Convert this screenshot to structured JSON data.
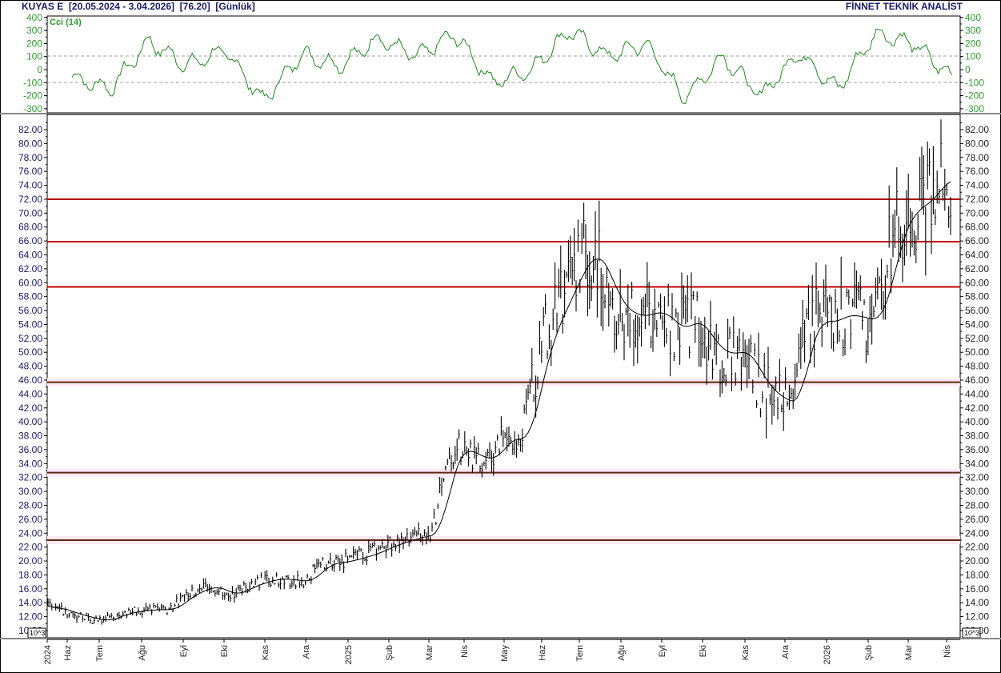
{
  "header": {
    "title": "KUYAS E  [20.05.2024 - 3.04.2026]  [76.20]  [Günlük]",
    "brand": "FİNNET TEKNİK ANALİST"
  },
  "cci_panel": {
    "legend": "Cci (14)",
    "ticks": [
      "400",
      "300",
      "200",
      "100",
      "0",
      "-100",
      "-200",
      "-300"
    ],
    "line_color": "#1e8a1e",
    "label_color": "#2e9e2e"
  },
  "price_panel": {
    "ticks": [
      "82.00",
      "80.00",
      "78.00",
      "76.00",
      "74.00",
      "72.00",
      "70.00",
      "68.00",
      "66.00",
      "64.00",
      "62.00",
      "60.00",
      "58.00",
      "56.00",
      "54.00",
      "52.00",
      "50.00",
      "48.00",
      "46.00",
      "44.00",
      "42.00",
      "40.00",
      "38.00",
      "36.00",
      "34.00",
      "32.00",
      "30.00",
      "28.00",
      "26.00",
      "24.00",
      "22.00",
      "20.00",
      "18.00",
      "16.00",
      "14.00",
      "12.00",
      "10.00"
    ],
    "exponent_badge": "10^3"
  },
  "x_axis": {
    "labels": [
      "2024",
      "Haz",
      "Tem",
      "Ağu",
      "Eyl",
      "Eki",
      "Kas",
      "Ara",
      "2025",
      "Şub",
      "Mar",
      "Nis",
      "May",
      "Haz",
      "Tem",
      "Ağu",
      "Eyl",
      "Eki",
      "Kas",
      "Ara",
      "2026",
      "Şub",
      "Mar",
      "Nis"
    ]
  },
  "chart_data": [
    {
      "type": "line",
      "title": "Cci (14)",
      "xlabel": "",
      "ylabel": "",
      "ylim": [
        -300,
        400
      ],
      "reference_lines": [
        100,
        -100
      ],
      "categories": [
        "2024-05",
        "2024-06",
        "2024-07",
        "2024-08",
        "2024-09",
        "2024-10",
        "2024-11",
        "2024-12",
        "2025-01",
        "2025-02",
        "2025-03",
        "2025-04",
        "2025-05",
        "2025-06",
        "2025-07",
        "2025-08",
        "2025-09",
        "2025-10",
        "2025-11",
        "2025-12",
        "2026-01",
        "2026-02",
        "2026-03",
        "2026-04"
      ],
      "series": [
        {
          "name": "Cci (14)",
          "values": [
            -60,
            -150,
            220,
            30,
            150,
            -240,
            120,
            30,
            240,
            100,
            270,
            -100,
            0,
            300,
            100,
            200,
            -220,
            100,
            -200,
            130,
            -150,
            280,
            200,
            -60
          ]
        }
      ],
      "grid": false
    },
    {
      "type": "ohlc",
      "title": "KUYAS E [20.05.2024 - 3.04.2026] [76.20] [Günlük]",
      "xlabel": "",
      "ylabel": "",
      "ylim": [
        10,
        84
      ],
      "last_value": 76.2,
      "categories": [
        "2024-05",
        "2024-06",
        "2024-07",
        "2024-08",
        "2024-09",
        "2024-10",
        "2024-11",
        "2024-12",
        "2025-01",
        "2025-02",
        "2025-03",
        "2025-04",
        "2025-05",
        "2025-06",
        "2025-07",
        "2025-08",
        "2025-09",
        "2025-10",
        "2025-11",
        "2025-12",
        "2026-01",
        "2026-02",
        "2026-03",
        "2026-04"
      ],
      "series": [
        {
          "name": "Close (approx.)",
          "values": [
            13.5,
            12.3,
            11.2,
            13.0,
            15.5,
            15.5,
            17.0,
            18.0,
            20.0,
            22.5,
            24.0,
            36.0,
            38.0,
            55.0,
            66.0,
            57.0,
            56.0,
            52.0,
            47.0,
            42.0,
            55.0,
            55.0,
            72.0,
            76.2
          ]
        },
        {
          "name": "Moving Average",
          "values": [
            13.0,
            12.5,
            11.5,
            12.5,
            14.5,
            15.0,
            16.5,
            17.5,
            19.5,
            22.0,
            23.5,
            35.0,
            36.0,
            48.0,
            63.0,
            58.0,
            55.0,
            53.0,
            49.5,
            44.0,
            51.0,
            55.0,
            68.0,
            75.0
          ]
        }
      ],
      "horizontal_lines": [
        {
          "value": 72.0,
          "color": "#b00000"
        },
        {
          "value": 65.9,
          "color": "#c80000"
        },
        {
          "value": 59.4,
          "color": "#c80000"
        },
        {
          "value": 45.7,
          "color": "#5a2a14"
        },
        {
          "value": 32.7,
          "color": "#5a2a14"
        },
        {
          "value": 23.0,
          "color": "#5a2a14"
        }
      ],
      "grid": false
    }
  ]
}
